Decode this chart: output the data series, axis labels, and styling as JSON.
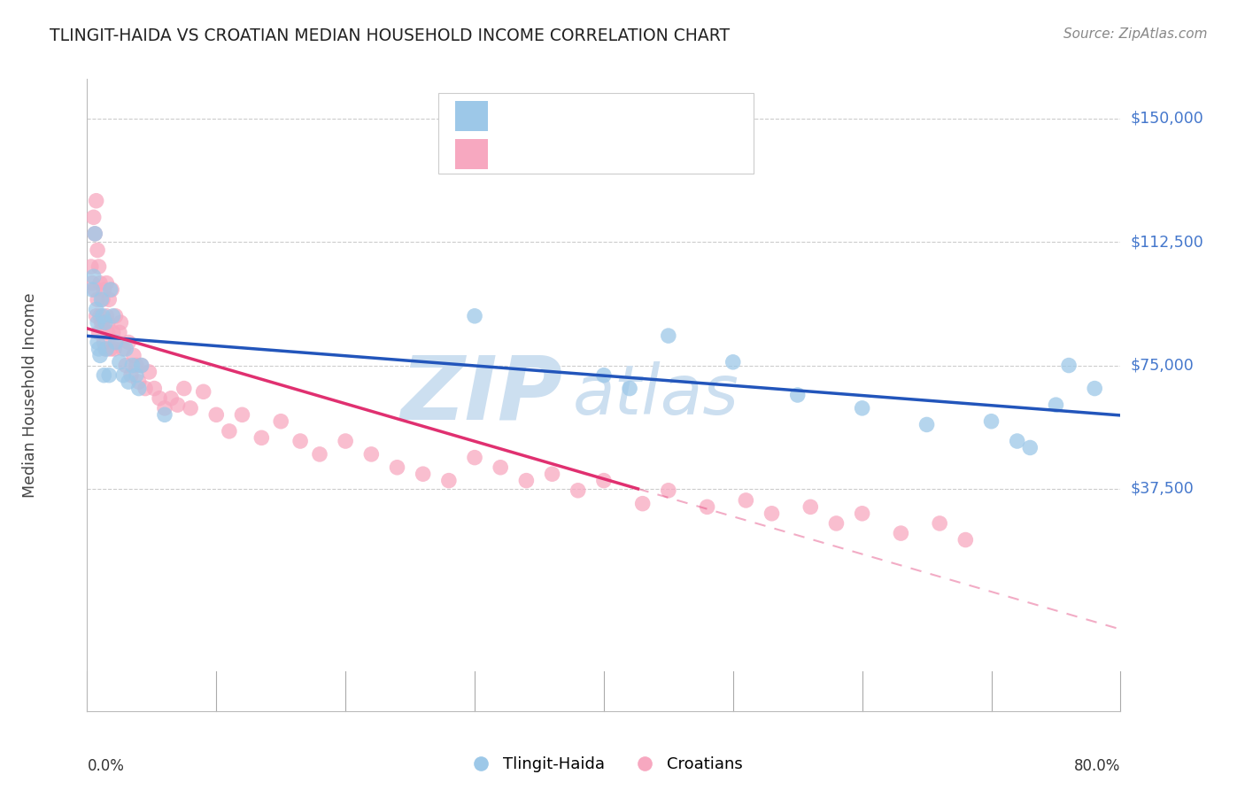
{
  "title": "TLINGIT-HAIDA VS CROATIAN MEDIAN HOUSEHOLD INCOME CORRELATION CHART",
  "source": "Source: ZipAtlas.com",
  "ylabel": "Median Household Income",
  "color_blue": "#9DC8E8",
  "color_pink": "#F7A8C0",
  "color_blue_line": "#2255BB",
  "color_pink_line": "#E03070",
  "color_rvalue_blue": "#4477CC",
  "color_rvalue_pink": "#CC3377",
  "watermark_color": "#CCDFF0",
  "xmin": 0.0,
  "xmax": 0.8,
  "ymin": 0,
  "ymax": 162000,
  "y_labels": [
    37500,
    75000,
    112500,
    150000
  ],
  "tlingit_x": [
    0.004,
    0.005,
    0.006,
    0.007,
    0.008,
    0.008,
    0.009,
    0.01,
    0.011,
    0.012,
    0.013,
    0.014,
    0.015,
    0.017,
    0.018,
    0.02,
    0.022,
    0.025,
    0.028,
    0.03,
    0.032,
    0.035,
    0.038,
    0.04,
    0.042,
    0.06,
    0.3,
    0.4,
    0.42,
    0.45,
    0.5,
    0.55,
    0.6,
    0.65,
    0.7,
    0.72,
    0.73,
    0.75,
    0.76,
    0.78
  ],
  "tlingit_y": [
    98000,
    102000,
    115000,
    92000,
    88000,
    82000,
    80000,
    78000,
    95000,
    90000,
    72000,
    88000,
    80000,
    72000,
    98000,
    90000,
    82000,
    76000,
    72000,
    80000,
    70000,
    75000,
    72000,
    68000,
    75000,
    60000,
    90000,
    72000,
    68000,
    84000,
    76000,
    66000,
    62000,
    57000,
    58000,
    52000,
    50000,
    63000,
    75000,
    68000
  ],
  "croatian_x": [
    0.003,
    0.004,
    0.005,
    0.006,
    0.006,
    0.007,
    0.007,
    0.008,
    0.008,
    0.009,
    0.009,
    0.01,
    0.01,
    0.011,
    0.012,
    0.012,
    0.013,
    0.013,
    0.014,
    0.015,
    0.015,
    0.016,
    0.016,
    0.017,
    0.018,
    0.019,
    0.02,
    0.021,
    0.022,
    0.023,
    0.025,
    0.026,
    0.028,
    0.03,
    0.032,
    0.034,
    0.036,
    0.038,
    0.04,
    0.042,
    0.045,
    0.048,
    0.052,
    0.056,
    0.06,
    0.065,
    0.07,
    0.075,
    0.08,
    0.09,
    0.1,
    0.11,
    0.12,
    0.135,
    0.15,
    0.165,
    0.18,
    0.2,
    0.22,
    0.24,
    0.26,
    0.28,
    0.3,
    0.32,
    0.34,
    0.36,
    0.38,
    0.4,
    0.43,
    0.45,
    0.48,
    0.51,
    0.53,
    0.56,
    0.58,
    0.6,
    0.63,
    0.66,
    0.68
  ],
  "croatian_y": [
    105000,
    100000,
    120000,
    98000,
    115000,
    125000,
    90000,
    110000,
    95000,
    105000,
    85000,
    100000,
    90000,
    88000,
    95000,
    88000,
    82000,
    98000,
    80000,
    100000,
    90000,
    85000,
    88000,
    95000,
    80000,
    98000,
    85000,
    80000,
    90000,
    82000,
    85000,
    88000,
    80000,
    75000,
    82000,
    72000,
    78000,
    75000,
    70000,
    75000,
    68000,
    73000,
    68000,
    65000,
    62000,
    65000,
    63000,
    68000,
    62000,
    67000,
    60000,
    55000,
    60000,
    53000,
    58000,
    52000,
    48000,
    52000,
    48000,
    44000,
    42000,
    40000,
    47000,
    44000,
    40000,
    42000,
    37000,
    40000,
    33000,
    37000,
    32000,
    34000,
    30000,
    32000,
    27000,
    30000,
    24000,
    27000,
    22000
  ]
}
